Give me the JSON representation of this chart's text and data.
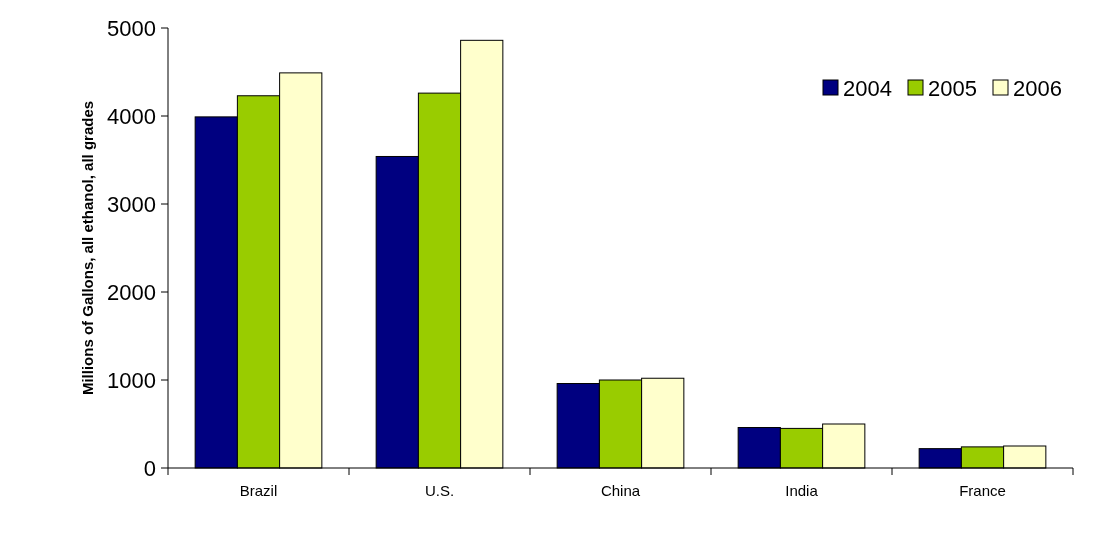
{
  "chart_data": {
    "type": "bar",
    "ylabel": "Millions of Gallons, all ethanol, all grades",
    "categories": [
      "Brazil",
      "U.S.",
      "China",
      "India",
      "France"
    ],
    "series": [
      {
        "name": "2004",
        "color": "#000080",
        "values": [
          3990,
          3540,
          960,
          460,
          220
        ]
      },
      {
        "name": "2005",
        "color": "#99cc00",
        "values": [
          4230,
          4260,
          1000,
          450,
          240
        ]
      },
      {
        "name": "2006",
        "color": "#ffffcc",
        "values": [
          4490,
          4860,
          1020,
          500,
          250
        ]
      }
    ],
    "ylim": [
      0,
      5000
    ],
    "yticks": [
      0,
      1000,
      2000,
      3000,
      4000,
      5000
    ],
    "legend": "top right"
  }
}
